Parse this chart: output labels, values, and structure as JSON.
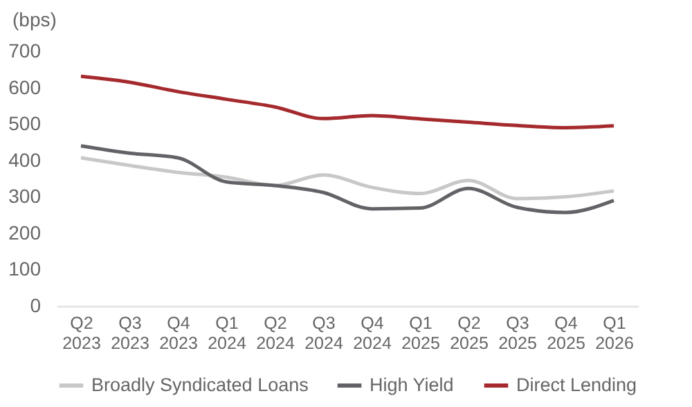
{
  "chart_data": {
    "type": "line",
    "ylabel": "(bps)",
    "categories": [
      "Q2 2023",
      "Q3 2023",
      "Q4 2023",
      "Q1 2024",
      "Q2 2024",
      "Q3 2024",
      "Q4 2024",
      "Q1 2025",
      "Q2 2025",
      "Q3 2025",
      "Q4 2025",
      "Q1 2026"
    ],
    "series": [
      {
        "name": "Broadly Syndicated Loans",
        "color": "#c8c8c8",
        "values": [
          407,
          386,
          367,
          354,
          331,
          360,
          326,
          309,
          345,
          295,
          300,
          316
        ]
      },
      {
        "name": "High Yield",
        "color": "#626366",
        "values": [
          440,
          420,
          407,
          341,
          331,
          312,
          267,
          269,
          323,
          271,
          257,
          290
        ]
      },
      {
        "name": "Direct Lending",
        "color": "#a52a2e",
        "values": [
          631,
          615,
          589,
          568,
          547,
          515,
          523,
          514,
          505,
          496,
          490,
          495
        ]
      }
    ],
    "ylim": [
      0,
      700
    ],
    "yticks": [
      0,
      100,
      200,
      300,
      400,
      500,
      600,
      700
    ],
    "grid": false,
    "legend": "bottom"
  }
}
